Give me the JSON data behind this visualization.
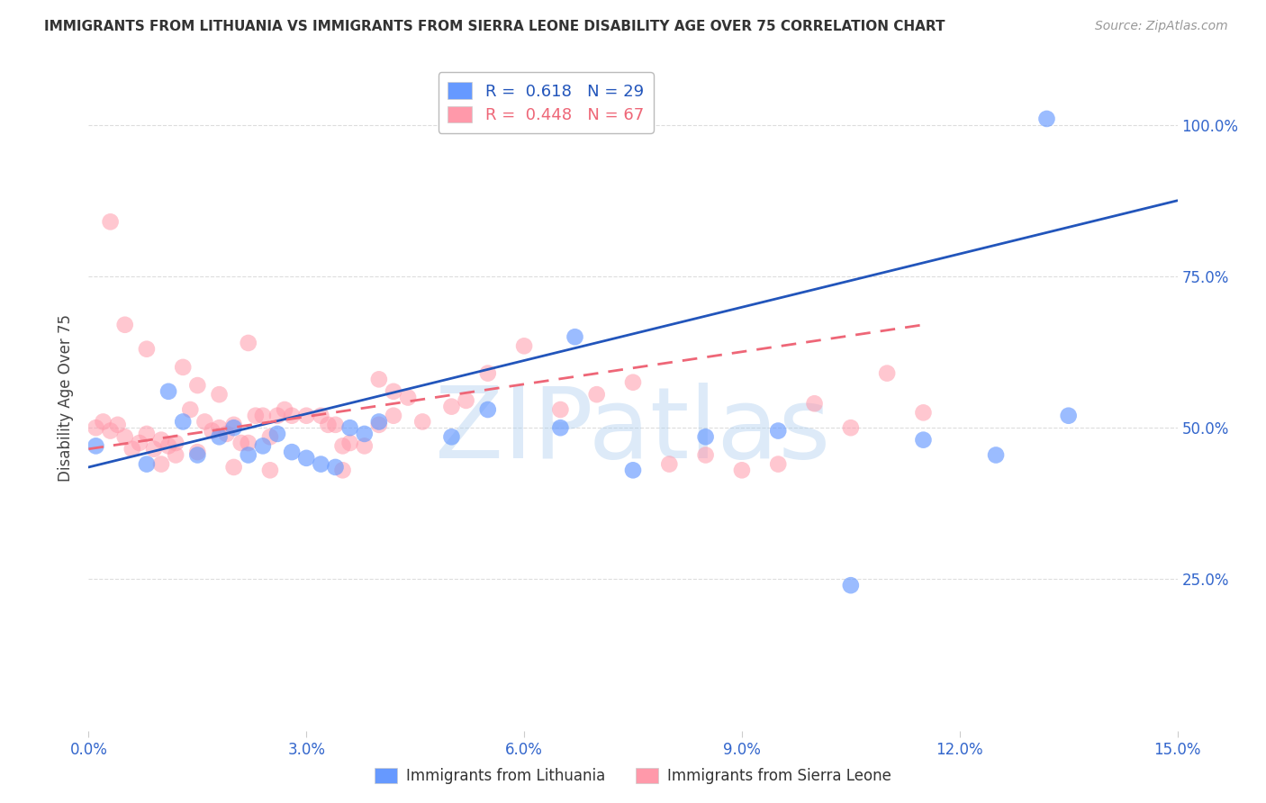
{
  "title": "IMMIGRANTS FROM LITHUANIA VS IMMIGRANTS FROM SIERRA LEONE DISABILITY AGE OVER 75 CORRELATION CHART",
  "source": "Source: ZipAtlas.com",
  "ylabel": "Disability Age Over 75",
  "legend_blue_r": "R =  0.618",
  "legend_blue_n": "N = 29",
  "legend_pink_r": "R =  0.448",
  "legend_pink_n": "N = 67",
  "blue_label": "Immigrants from Lithuania",
  "pink_label": "Immigrants from Sierra Leone",
  "blue_color": "#6699FF",
  "pink_color": "#FF99AA",
  "blue_line_color": "#2255BB",
  "pink_line_color": "#EE6677",
  "watermark": "ZIPatlas",
  "watermark_color": "#AACCEE",
  "xlim": [
    0.0,
    0.15
  ],
  "ylim": [
    0.0,
    1.1
  ],
  "blue_scatter_x": [
    0.001,
    0.008,
    0.011,
    0.013,
    0.015,
    0.018,
    0.02,
    0.022,
    0.024,
    0.026,
    0.028,
    0.03,
    0.032,
    0.034,
    0.036,
    0.038,
    0.04,
    0.05,
    0.055,
    0.065,
    0.075,
    0.085,
    0.095,
    0.105,
    0.115,
    0.125,
    0.135,
    0.067,
    0.132
  ],
  "blue_scatter_y": [
    0.47,
    0.44,
    0.56,
    0.51,
    0.455,
    0.485,
    0.5,
    0.455,
    0.47,
    0.49,
    0.46,
    0.45,
    0.44,
    0.435,
    0.5,
    0.49,
    0.51,
    0.485,
    0.53,
    0.5,
    0.43,
    0.485,
    0.495,
    0.24,
    0.48,
    0.455,
    0.52,
    0.65,
    1.01
  ],
  "pink_scatter_x": [
    0.001,
    0.002,
    0.003,
    0.004,
    0.005,
    0.006,
    0.007,
    0.008,
    0.009,
    0.01,
    0.011,
    0.012,
    0.013,
    0.014,
    0.015,
    0.016,
    0.017,
    0.018,
    0.019,
    0.02,
    0.021,
    0.022,
    0.023,
    0.024,
    0.025,
    0.026,
    0.027,
    0.028,
    0.03,
    0.032,
    0.033,
    0.034,
    0.035,
    0.036,
    0.038,
    0.04,
    0.042,
    0.044,
    0.046,
    0.05,
    0.052,
    0.055,
    0.06,
    0.065,
    0.07,
    0.075,
    0.08,
    0.085,
    0.09,
    0.095,
    0.1,
    0.105,
    0.11,
    0.115,
    0.042,
    0.018,
    0.015,
    0.012,
    0.008,
    0.005,
    0.003,
    0.022,
    0.025,
    0.035,
    0.04,
    0.01,
    0.02
  ],
  "pink_scatter_y": [
    0.5,
    0.51,
    0.495,
    0.505,
    0.485,
    0.465,
    0.475,
    0.49,
    0.465,
    0.48,
    0.47,
    0.475,
    0.6,
    0.53,
    0.57,
    0.51,
    0.495,
    0.5,
    0.49,
    0.505,
    0.475,
    0.475,
    0.52,
    0.52,
    0.485,
    0.52,
    0.53,
    0.52,
    0.52,
    0.52,
    0.505,
    0.505,
    0.47,
    0.475,
    0.47,
    0.505,
    0.52,
    0.55,
    0.51,
    0.535,
    0.545,
    0.59,
    0.635,
    0.53,
    0.555,
    0.575,
    0.44,
    0.455,
    0.43,
    0.44,
    0.54,
    0.5,
    0.59,
    0.525,
    0.56,
    0.555,
    0.46,
    0.455,
    0.63,
    0.67,
    0.84,
    0.64,
    0.43,
    0.43,
    0.58,
    0.44,
    0.435
  ],
  "blue_line_x": [
    0.0,
    0.15
  ],
  "blue_line_y": [
    0.435,
    0.875
  ],
  "pink_line_x": [
    0.0,
    0.115
  ],
  "pink_line_y": [
    0.465,
    0.67
  ],
  "xtick_vals": [
    0.0,
    0.03,
    0.06,
    0.09,
    0.12,
    0.15
  ],
  "ytick_vals": [
    0.25,
    0.5,
    0.75,
    1.0
  ],
  "ytick_labels": [
    "25.0%",
    "50.0%",
    "75.0%",
    "100.0%"
  ],
  "grid_color": "#DDDDDD",
  "background_color": "#FFFFFF",
  "tick_color": "#3366CC",
  "title_color": "#333333",
  "source_color": "#999999",
  "ylabel_color": "#444444"
}
